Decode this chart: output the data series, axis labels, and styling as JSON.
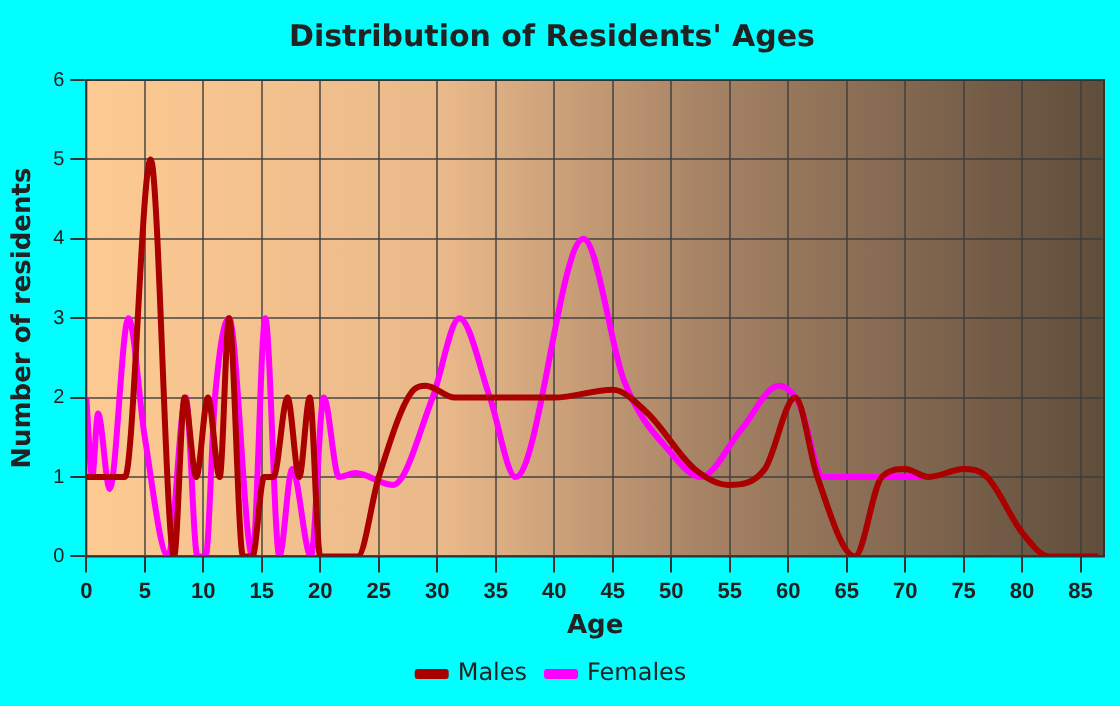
{
  "chart_data": {
    "type": "line",
    "title": "Distribution of Residents' Ages",
    "xlabel": "Age",
    "ylabel": "Number of residents",
    "xlim": [
      0,
      87
    ],
    "xticks": [
      0,
      5,
      10,
      15,
      20,
      25,
      30,
      35,
      40,
      45,
      50,
      55,
      60,
      65,
      70,
      75,
      80,
      85
    ],
    "ylim": [
      0,
      6
    ],
    "yticks": [
      0,
      1,
      2,
      3,
      4,
      5,
      6
    ],
    "grid": true,
    "legend": "bottom",
    "marker": "none",
    "line_style": "solid",
    "series": [
      {
        "name": "Males",
        "color": "#aa0000",
        "x": [
          0,
          2,
          3.3,
          5.5,
          7.5,
          8.4,
          9.4,
          10.4,
          11.4,
          12.2,
          13.4,
          14.2,
          15.2,
          16,
          17.2,
          18.2,
          19.1,
          20,
          21.5,
          23.2,
          25,
          28,
          29,
          31.5,
          35,
          40,
          45,
          48,
          52,
          54.9,
          58,
          60.6,
          62.5,
          65.7,
          68,
          70,
          72,
          75,
          77,
          80,
          82.3,
          86.5
        ],
        "values": [
          1,
          1,
          1,
          5,
          0,
          2,
          1,
          2,
          1,
          3,
          0,
          0,
          1,
          1,
          2,
          1,
          2,
          0,
          0,
          0,
          1,
          2.1,
          2.15,
          2,
          2,
          2,
          2.1,
          1.8,
          1.1,
          0.9,
          1.1,
          2,
          1,
          0,
          1,
          1.1,
          1,
          1.1,
          1,
          0.3,
          0,
          0
        ]
      },
      {
        "name": "Females",
        "color": "#ff00ff",
        "x": [
          0,
          0.5,
          1,
          2,
          3.6,
          5,
          7,
          8.5,
          9.5,
          10.2,
          11,
          12.2,
          14.2,
          15.3,
          16.5,
          17.6,
          19.2,
          20.3,
          21.6,
          23,
          26.2,
          29.6,
          31.9,
          34.5,
          36.7,
          42.5,
          46,
          50,
          52.5,
          56,
          59.2,
          61,
          63,
          67,
          72
        ],
        "values": [
          2,
          1,
          1.8,
          0.85,
          3,
          1.5,
          0,
          2,
          0,
          0,
          2,
          3,
          0,
          3,
          0,
          1.1,
          0,
          2,
          1,
          1.05,
          0.9,
          2,
          3,
          2,
          1,
          4,
          2.2,
          1.3,
          1,
          1.6,
          2.15,
          1.9,
          1,
          1,
          1
        ]
      }
    ]
  }
}
